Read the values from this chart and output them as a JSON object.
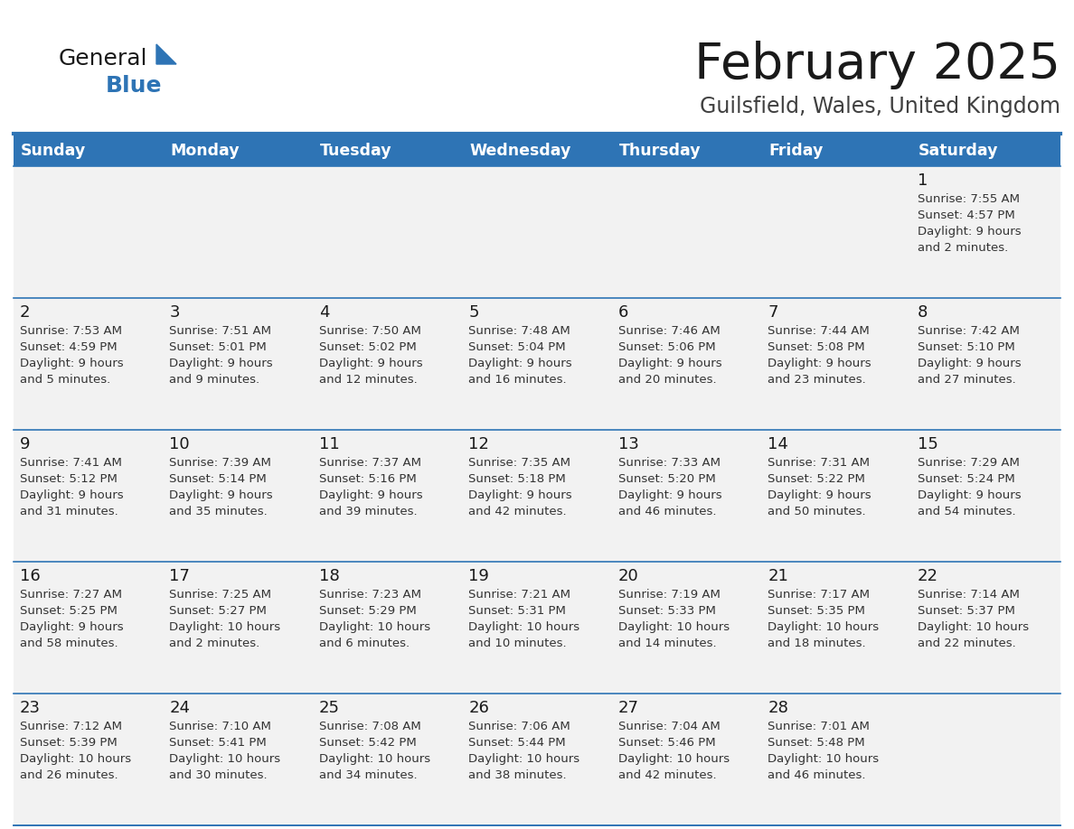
{
  "title": "February 2025",
  "subtitle": "Guilsfield, Wales, United Kingdom",
  "header_bg": "#2e74b5",
  "header_text_color": "#ffffff",
  "day_names": [
    "Sunday",
    "Monday",
    "Tuesday",
    "Wednesday",
    "Thursday",
    "Friday",
    "Saturday"
  ],
  "title_color": "#1a1a1a",
  "subtitle_color": "#404040",
  "cell_bg": "#f2f2f2",
  "cell_bg_white": "#ffffff",
  "cell_border_color": "#2e74b5",
  "day_number_color": "#1a1a1a",
  "day_text_color": "#333333",
  "logo_general_color": "#1a1a1a",
  "logo_blue_color": "#2e74b5",
  "days": [
    {
      "date": 1,
      "col": 6,
      "row": 0,
      "sunrise": "7:55 AM",
      "sunset": "4:57 PM",
      "daylight": "9 hours and 2 minutes."
    },
    {
      "date": 2,
      "col": 0,
      "row": 1,
      "sunrise": "7:53 AM",
      "sunset": "4:59 PM",
      "daylight": "9 hours and 5 minutes."
    },
    {
      "date": 3,
      "col": 1,
      "row": 1,
      "sunrise": "7:51 AM",
      "sunset": "5:01 PM",
      "daylight": "9 hours and 9 minutes."
    },
    {
      "date": 4,
      "col": 2,
      "row": 1,
      "sunrise": "7:50 AM",
      "sunset": "5:02 PM",
      "daylight": "9 hours and 12 minutes."
    },
    {
      "date": 5,
      "col": 3,
      "row": 1,
      "sunrise": "7:48 AM",
      "sunset": "5:04 PM",
      "daylight": "9 hours and 16 minutes."
    },
    {
      "date": 6,
      "col": 4,
      "row": 1,
      "sunrise": "7:46 AM",
      "sunset": "5:06 PM",
      "daylight": "9 hours and 20 minutes."
    },
    {
      "date": 7,
      "col": 5,
      "row": 1,
      "sunrise": "7:44 AM",
      "sunset": "5:08 PM",
      "daylight": "9 hours and 23 minutes."
    },
    {
      "date": 8,
      "col": 6,
      "row": 1,
      "sunrise": "7:42 AM",
      "sunset": "5:10 PM",
      "daylight": "9 hours and 27 minutes."
    },
    {
      "date": 9,
      "col": 0,
      "row": 2,
      "sunrise": "7:41 AM",
      "sunset": "5:12 PM",
      "daylight": "9 hours and 31 minutes."
    },
    {
      "date": 10,
      "col": 1,
      "row": 2,
      "sunrise": "7:39 AM",
      "sunset": "5:14 PM",
      "daylight": "9 hours and 35 minutes."
    },
    {
      "date": 11,
      "col": 2,
      "row": 2,
      "sunrise": "7:37 AM",
      "sunset": "5:16 PM",
      "daylight": "9 hours and 39 minutes."
    },
    {
      "date": 12,
      "col": 3,
      "row": 2,
      "sunrise": "7:35 AM",
      "sunset": "5:18 PM",
      "daylight": "9 hours and 42 minutes."
    },
    {
      "date": 13,
      "col": 4,
      "row": 2,
      "sunrise": "7:33 AM",
      "sunset": "5:20 PM",
      "daylight": "9 hours and 46 minutes."
    },
    {
      "date": 14,
      "col": 5,
      "row": 2,
      "sunrise": "7:31 AM",
      "sunset": "5:22 PM",
      "daylight": "9 hours and 50 minutes."
    },
    {
      "date": 15,
      "col": 6,
      "row": 2,
      "sunrise": "7:29 AM",
      "sunset": "5:24 PM",
      "daylight": "9 hours and 54 minutes."
    },
    {
      "date": 16,
      "col": 0,
      "row": 3,
      "sunrise": "7:27 AM",
      "sunset": "5:25 PM",
      "daylight": "9 hours and 58 minutes."
    },
    {
      "date": 17,
      "col": 1,
      "row": 3,
      "sunrise": "7:25 AM",
      "sunset": "5:27 PM",
      "daylight": "10 hours and 2 minutes."
    },
    {
      "date": 18,
      "col": 2,
      "row": 3,
      "sunrise": "7:23 AM",
      "sunset": "5:29 PM",
      "daylight": "10 hours and 6 minutes."
    },
    {
      "date": 19,
      "col": 3,
      "row": 3,
      "sunrise": "7:21 AM",
      "sunset": "5:31 PM",
      "daylight": "10 hours and 10 minutes."
    },
    {
      "date": 20,
      "col": 4,
      "row": 3,
      "sunrise": "7:19 AM",
      "sunset": "5:33 PM",
      "daylight": "10 hours and 14 minutes."
    },
    {
      "date": 21,
      "col": 5,
      "row": 3,
      "sunrise": "7:17 AM",
      "sunset": "5:35 PM",
      "daylight": "10 hours and 18 minutes."
    },
    {
      "date": 22,
      "col": 6,
      "row": 3,
      "sunrise": "7:14 AM",
      "sunset": "5:37 PM",
      "daylight": "10 hours and 22 minutes."
    },
    {
      "date": 23,
      "col": 0,
      "row": 4,
      "sunrise": "7:12 AM",
      "sunset": "5:39 PM",
      "daylight": "10 hours and 26 minutes."
    },
    {
      "date": 24,
      "col": 1,
      "row": 4,
      "sunrise": "7:10 AM",
      "sunset": "5:41 PM",
      "daylight": "10 hours and 30 minutes."
    },
    {
      "date": 25,
      "col": 2,
      "row": 4,
      "sunrise": "7:08 AM",
      "sunset": "5:42 PM",
      "daylight": "10 hours and 34 minutes."
    },
    {
      "date": 26,
      "col": 3,
      "row": 4,
      "sunrise": "7:06 AM",
      "sunset": "5:44 PM",
      "daylight": "10 hours and 38 minutes."
    },
    {
      "date": 27,
      "col": 4,
      "row": 4,
      "sunrise": "7:04 AM",
      "sunset": "5:46 PM",
      "daylight": "10 hours and 42 minutes."
    },
    {
      "date": 28,
      "col": 5,
      "row": 4,
      "sunrise": "7:01 AM",
      "sunset": "5:48 PM",
      "daylight": "10 hours and 46 minutes."
    }
  ]
}
